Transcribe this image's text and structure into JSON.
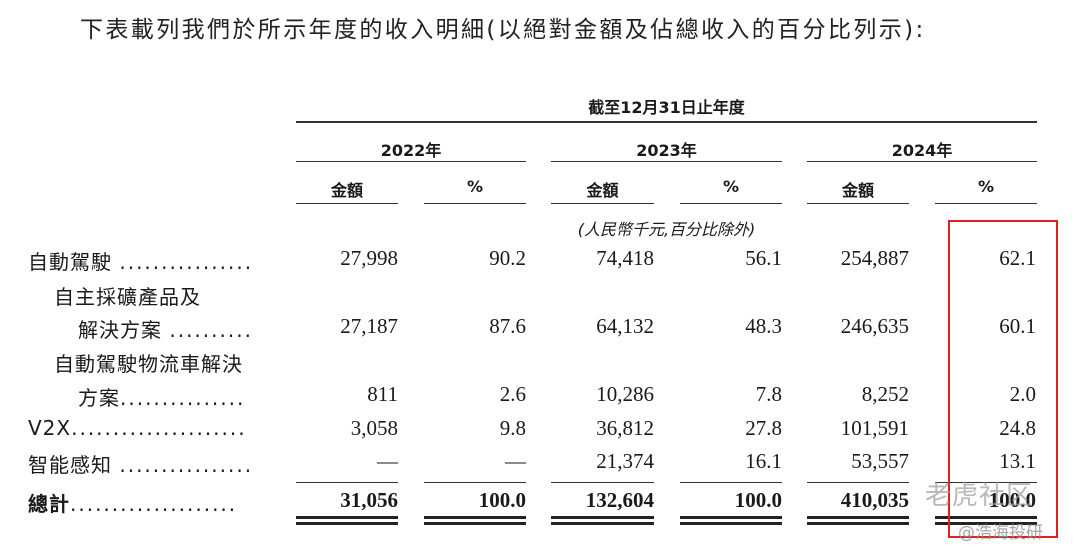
{
  "intro": "下表載列我們於所示年度的收入明細(以絕對金額及佔總收入的百分比列示):",
  "period_header": "截至12月31日止年度",
  "years": [
    "2022年",
    "2023年",
    "2024年"
  ],
  "col_amount": "金額",
  "col_pct": "%",
  "unit_note": "(人民幣千元,百分比除外)",
  "rows": [
    {
      "label": "自動駕駛",
      "dots": "................",
      "values": [
        "27,998",
        "90.2",
        "74,418",
        "56.1",
        "254,887",
        "62.1"
      ]
    },
    {
      "label": "自主採礦產品及",
      "dots": "",
      "values": []
    },
    {
      "label": "解決方案",
      "dots": "..........",
      "values": [
        "27,187",
        "87.6",
        "64,132",
        "48.3",
        "246,635",
        "60.1"
      ]
    },
    {
      "label": "自動駕駛物流車解決",
      "dots": "",
      "values": []
    },
    {
      "label": "方案",
      "dots": "...............",
      "values": [
        "811",
        "2.6",
        "10,286",
        "7.8",
        "8,252",
        "2.0"
      ]
    },
    {
      "label": "V2X",
      "dots": ".....................",
      "values": [
        "3,058",
        "9.8",
        "36,812",
        "27.8",
        "101,591",
        "24.8"
      ]
    },
    {
      "label": "智能感知",
      "dots": "................",
      "values": [
        "—",
        "—",
        "21,374",
        "16.1",
        "53,557",
        "13.1"
      ]
    },
    {
      "label": "總計",
      "dots": "....................",
      "values": [
        "31,056",
        "100.0",
        "132,604",
        "100.0",
        "410,035",
        "100.0"
      ]
    }
  ],
  "watermark_1": "老虎社区",
  "watermark_2": "@浩海投研",
  "highlight_color": "#dd2222"
}
